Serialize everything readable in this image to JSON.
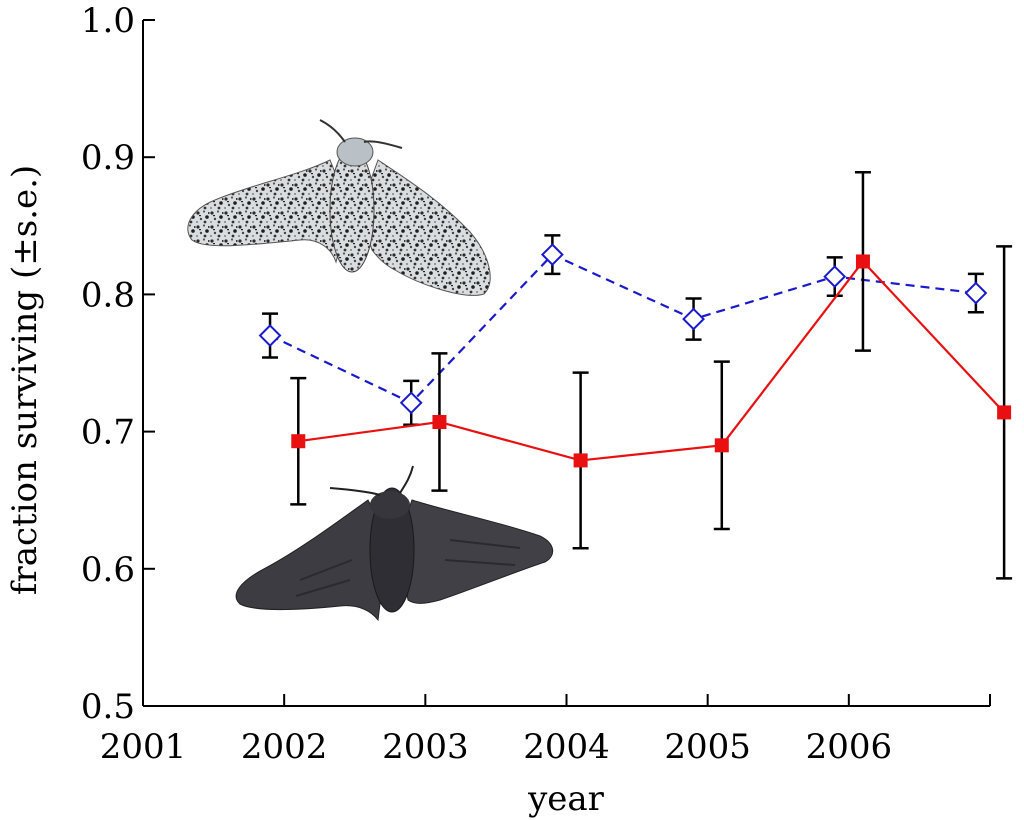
{
  "chart_data": {
    "type": "line",
    "xlabel": "year",
    "ylabel": "fraction surviving (±s.e.)",
    "xlim": [
      2001,
      2007
    ],
    "ylim": [
      0.5,
      1.0
    ],
    "x_ticks": [
      2001,
      2002,
      2003,
      2004,
      2005,
      2006,
      2007
    ],
    "x_tick_labels": [
      "2001",
      "2002",
      "2003",
      "2004",
      "2005",
      "2006",
      ""
    ],
    "y_ticks": [
      0.5,
      0.6,
      0.7,
      0.8,
      0.9,
      1.0
    ],
    "y_tick_labels": [
      "0.5",
      "0.6",
      "0.7",
      "0.8",
      "0.9",
      "1.0"
    ],
    "grid": false,
    "legend": "none (moth images indicate series)",
    "series": [
      {
        "key": "typica",
        "line_style": "dashed",
        "marker": "open-diamond",
        "color": "#1a1acc",
        "points": [
          {
            "x": 2001.9,
            "y": 0.77,
            "err": 0.016
          },
          {
            "x": 2002.9,
            "y": 0.721,
            "err": 0.016
          },
          {
            "x": 2003.9,
            "y": 0.829,
            "err": 0.014
          },
          {
            "x": 2004.9,
            "y": 0.782,
            "err": 0.015
          },
          {
            "x": 2005.9,
            "y": 0.813,
            "err": 0.014
          },
          {
            "x": 2006.9,
            "y": 0.801,
            "err": 0.014
          }
        ]
      },
      {
        "key": "carbonaria",
        "line_style": "solid",
        "marker": "filled-square",
        "color": "#e81010",
        "points": [
          {
            "x": 2002.1,
            "y": 0.693,
            "err": 0.046
          },
          {
            "x": 2003.1,
            "y": 0.707,
            "err": 0.05
          },
          {
            "x": 2004.1,
            "y": 0.679,
            "err": 0.064
          },
          {
            "x": 2005.1,
            "y": 0.69,
            "err": 0.061
          },
          {
            "x": 2006.1,
            "y": 0.824,
            "err": 0.065
          },
          {
            "x": 2007.1,
            "y": 0.714,
            "err": 0.121
          }
        ]
      }
    ],
    "illustrations": [
      {
        "name": "light-peppered-moth-icon",
        "depicts": "typica (pale speckled) moth"
      },
      {
        "name": "dark-peppered-moth-icon",
        "depicts": "carbonaria (melanic) moth"
      }
    ]
  }
}
